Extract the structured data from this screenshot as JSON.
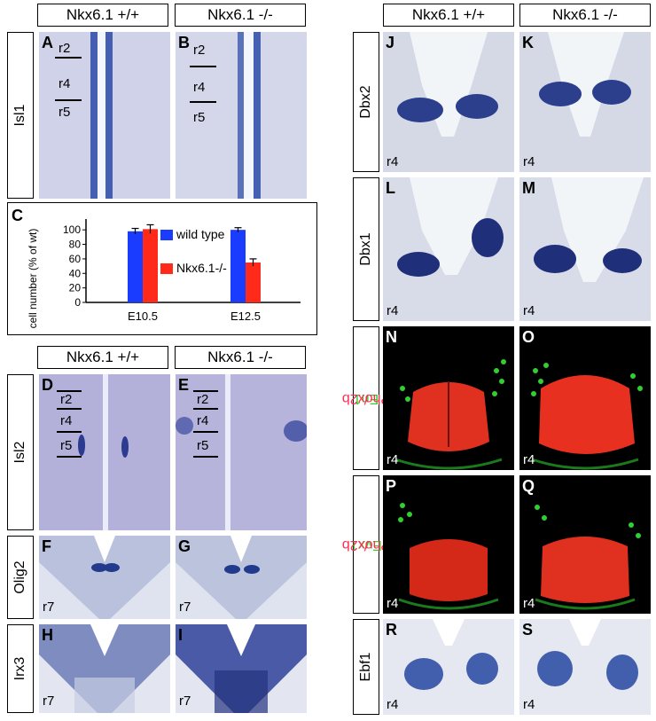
{
  "genotype": {
    "wt": "Nkx6.1 +/+",
    "ko": "Nkx6.1 -/-"
  },
  "rows": {
    "isl1": "Isl1",
    "isl2": "Isl2",
    "olig2": "Olig2",
    "irx3": "Irx3",
    "dbx2": "Dbx2",
    "dbx1": "Dbx1",
    "ebf1": "Ebf1",
    "en1": "En1",
    "evx1": "Evx1",
    "phox2b": "Phox2b",
    "slash": "/"
  },
  "panels": {
    "A": "A",
    "B": "B",
    "C": "C",
    "D": "D",
    "E": "E",
    "F": "F",
    "G": "G",
    "H": "H",
    "I": "I",
    "J": "J",
    "K": "K",
    "L": "L",
    "M": "M",
    "N": "N",
    "O": "O",
    "P": "P",
    "Q": "Q",
    "R": "R",
    "S": "S"
  },
  "rhombomeres": {
    "r2": "r2",
    "r4": "r4",
    "r5": "r5",
    "r7": "r7"
  },
  "colors": {
    "en1": "#2fd12f",
    "phox2b": "#ff2d55",
    "wt_bar": "#1a3cff",
    "ko_bar": "#ff2a1a",
    "stain": "#1f3590"
  },
  "chart_data": {
    "type": "bar",
    "categories": [
      "E10.5",
      "E12.5"
    ],
    "series": [
      {
        "name": "wild type",
        "values": [
          98,
          100
        ],
        "errors": [
          4,
          3
        ]
      },
      {
        "name": "Nkx6.1-/-",
        "values": [
          101,
          55
        ],
        "errors": [
          6,
          5
        ]
      }
    ],
    "ylabel": "cell number (% of wt)",
    "yticks": [
      "100",
      "80",
      "60",
      "40",
      "20",
      "0"
    ],
    "ylim": [
      0,
      110
    ]
  }
}
